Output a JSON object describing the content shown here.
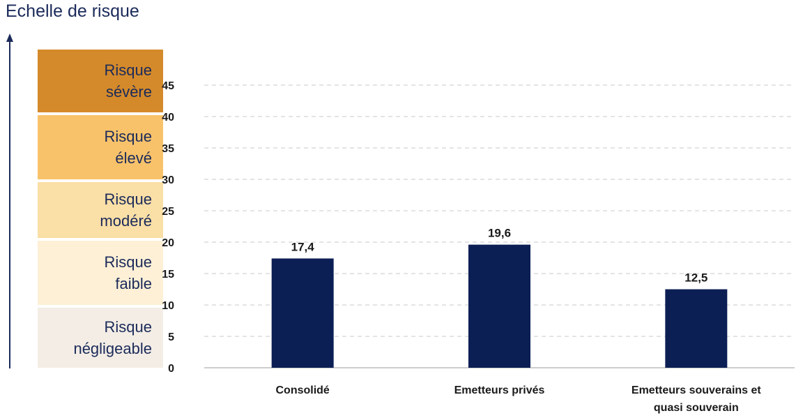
{
  "scale_title": "Echelle de risque",
  "risk_bands": [
    {
      "line1": "Risque",
      "line2": "sévère",
      "color": "#d48a2a"
    },
    {
      "line1": "Risque",
      "line2": "élevé",
      "color": "#f8c26a"
    },
    {
      "line1": "Risque",
      "line2": "modéré",
      "color": "#fadfa6"
    },
    {
      "line1": "Risque",
      "line2": "faible",
      "color": "#fdf0d6"
    },
    {
      "line1": "Risque",
      "line2": "négligeable",
      "color": "#f3ede5"
    }
  ],
  "colors": {
    "bar": "#0c1f55",
    "grid": "#c8c8c8",
    "axis_text": "#1b2a5a"
  },
  "chart_data": {
    "type": "bar",
    "categories": [
      [
        "Consolidé"
      ],
      [
        "Emetteurs privés"
      ],
      [
        "Emetteurs souverains et",
        "quasi souverain"
      ]
    ],
    "values": [
      17.4,
      19.6,
      12.5
    ],
    "value_labels": [
      "17,4",
      "19,6",
      "12,5"
    ],
    "yticks": [
      0,
      5,
      10,
      15,
      20,
      25,
      30,
      35,
      40,
      45
    ],
    "ylim": [
      0,
      45
    ],
    "grid": true,
    "title": "",
    "xlabel": "",
    "ylabel": ""
  }
}
